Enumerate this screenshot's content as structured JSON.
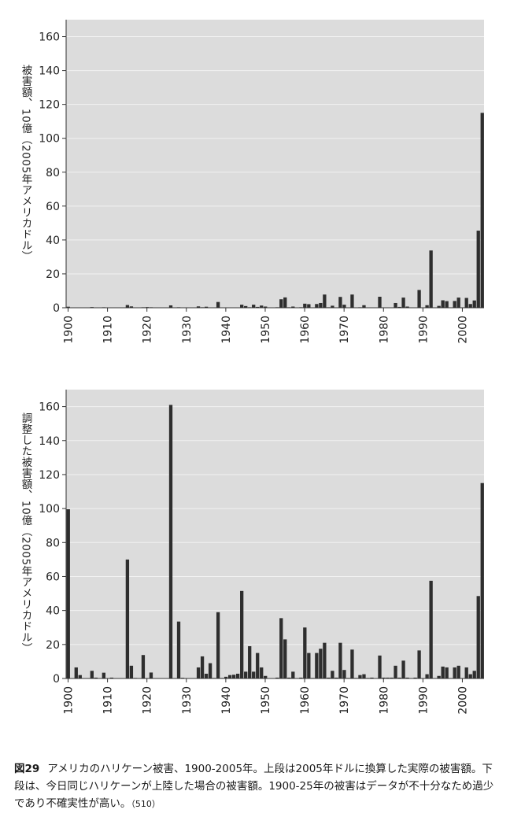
{
  "chart_data": [
    {
      "type": "bar",
      "ylabel": "被害額、10億（2005年アメリカドル）",
      "ylim": [
        0,
        170
      ],
      "yticks": [
        0,
        20,
        40,
        60,
        80,
        100,
        120,
        140,
        160
      ],
      "xticks": [
        1900,
        1910,
        1920,
        1930,
        1940,
        1950,
        1960,
        1970,
        1980,
        1990,
        2000
      ],
      "grid": true,
      "x": [
        1900,
        1901,
        1902,
        1903,
        1904,
        1905,
        1906,
        1907,
        1908,
        1909,
        1910,
        1911,
        1912,
        1913,
        1914,
        1915,
        1916,
        1917,
        1918,
        1919,
        1920,
        1921,
        1922,
        1923,
        1924,
        1925,
        1926,
        1927,
        1928,
        1929,
        1930,
        1931,
        1932,
        1933,
        1934,
        1935,
        1936,
        1937,
        1938,
        1939,
        1940,
        1941,
        1942,
        1943,
        1944,
        1945,
        1946,
        1947,
        1948,
        1949,
        1950,
        1951,
        1952,
        1953,
        1954,
        1955,
        1956,
        1957,
        1958,
        1959,
        1960,
        1961,
        1962,
        1963,
        1964,
        1965,
        1966,
        1967,
        1968,
        1969,
        1970,
        1971,
        1972,
        1973,
        1974,
        1975,
        1976,
        1977,
        1978,
        1979,
        1980,
        1981,
        1982,
        1983,
        1984,
        1985,
        1986,
        1987,
        1988,
        1989,
        1990,
        1991,
        1992,
        1993,
        1994,
        1995,
        1996,
        1997,
        1998,
        1999,
        2000,
        2001,
        2002,
        2003,
        2004,
        2005
      ],
      "values": [
        0.6,
        0,
        0,
        0,
        0,
        0,
        0.4,
        0,
        0,
        0.3,
        0,
        0,
        0,
        0,
        0,
        1.6,
        0.8,
        0,
        0,
        0.3,
        0.4,
        0.3,
        0,
        0,
        0,
        0,
        1.4,
        0,
        0.3,
        0.1,
        0,
        0,
        0,
        0.8,
        0.3,
        0.6,
        0,
        0,
        3.4,
        0.1,
        0.1,
        0.2,
        0.1,
        0.2,
        1.8,
        1.0,
        0.3,
        1.8,
        0.5,
        1.3,
        0.7,
        0.1,
        0,
        0.3,
        5.0,
        6.1,
        0.3,
        0.7,
        0.1,
        0.3,
        2.4,
        2.1,
        0.1,
        2.2,
        2.8,
        7.8,
        0.3,
        1.2,
        0.2,
        6.4,
        1.8,
        0.1,
        7.8,
        0.1,
        0.3,
        1.5,
        0.1,
        0.2,
        0.1,
        6.5,
        0.1,
        0.2,
        0.1,
        2.8,
        0.5,
        6.0,
        0.7,
        0.1,
        0.2,
        10.5,
        0.1,
        1.5,
        33.8,
        0.1,
        1.1,
        4.4,
        3.9,
        0.1,
        4.0,
        6.0,
        0.1,
        5.8,
        2.2,
        4.3,
        45.5,
        115.0
      ]
    },
    {
      "type": "bar",
      "ylabel": "調整した被害額、10億（2005年アメリカドル）",
      "ylim": [
        0,
        170
      ],
      "yticks": [
        0,
        20,
        40,
        60,
        80,
        100,
        120,
        140,
        160
      ],
      "xticks": [
        1900,
        1910,
        1920,
        1930,
        1940,
        1950,
        1960,
        1970,
        1980,
        1990,
        2000
      ],
      "grid": true,
      "x": [
        1900,
        1901,
        1902,
        1903,
        1904,
        1905,
        1906,
        1907,
        1908,
        1909,
        1910,
        1911,
        1912,
        1913,
        1914,
        1915,
        1916,
        1917,
        1918,
        1919,
        1920,
        1921,
        1922,
        1923,
        1924,
        1925,
        1926,
        1927,
        1928,
        1929,
        1930,
        1931,
        1932,
        1933,
        1934,
        1935,
        1936,
        1937,
        1938,
        1939,
        1940,
        1941,
        1942,
        1943,
        1944,
        1945,
        1946,
        1947,
        1948,
        1949,
        1950,
        1951,
        1952,
        1953,
        1954,
        1955,
        1956,
        1957,
        1958,
        1959,
        1960,
        1961,
        1962,
        1963,
        1964,
        1965,
        1966,
        1967,
        1968,
        1969,
        1970,
        1971,
        1972,
        1973,
        1974,
        1975,
        1976,
        1977,
        1978,
        1979,
        1980,
        1981,
        1982,
        1983,
        1984,
        1985,
        1986,
        1987,
        1988,
        1989,
        1990,
        1991,
        1992,
        1993,
        1994,
        1995,
        1996,
        1997,
        1998,
        1999,
        2000,
        2001,
        2002,
        2003,
        2004,
        2005
      ],
      "values": [
        99.6,
        0.2,
        6.5,
        2.0,
        0.2,
        0,
        4.5,
        0.5,
        0.1,
        3.4,
        0.2,
        0.5,
        0.2,
        0.2,
        0,
        70.0,
        7.5,
        0.3,
        0,
        13.8,
        0.2,
        3.5,
        0,
        0,
        0,
        0,
        161.0,
        0.2,
        33.5,
        0.4,
        0,
        0.2,
        0,
        6.5,
        13.0,
        2.8,
        9.0,
        0.3,
        39.0,
        0.3,
        1.0,
        2.0,
        2.2,
        2.8,
        51.5,
        4.0,
        19.0,
        4.0,
        15.0,
        6.5,
        1.5,
        0.2,
        0,
        0.5,
        35.5,
        23.0,
        0.5,
        4.0,
        0.2,
        0.5,
        30.0,
        15.0,
        0.3,
        15.0,
        17.5,
        21.0,
        0.5,
        4.5,
        0.5,
        21.0,
        5.0,
        0.3,
        17.0,
        0.3,
        2.0,
        2.5,
        0.3,
        0.5,
        0.1,
        13.5,
        0.5,
        0.5,
        0.5,
        7.5,
        0.5,
        10.5,
        0.5,
        0.2,
        0.5,
        16.5,
        0.2,
        2.5,
        57.5,
        0.2,
        1.5,
        7.0,
        6.5,
        0.2,
        6.5,
        7.5,
        0.2,
        6.5,
        2.5,
        4.5,
        48.5,
        115.0
      ]
    }
  ],
  "caption": {
    "fig_no": "図29",
    "text": "アメリカのハリケーン被害、1900-2005年。上段は2005年ドルに換算した実際の被害額。下段は、今日同じハリケーンが上陸した場合の被害額。1900-25年の被害はデータが不十分なため過少であり不確実性が高い。",
    "ref": "（510）"
  },
  "colors": {
    "plot_bg": "#dcdcdc",
    "bar": "#2e2e2e",
    "grid": "#f2f2f2"
  }
}
